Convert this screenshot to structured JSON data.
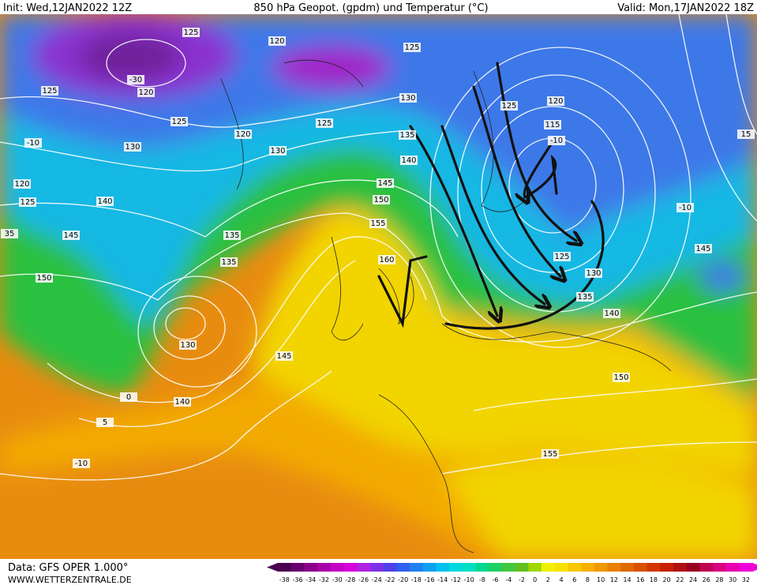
{
  "header": {
    "init": "Init: Wed,12JAN2022 12Z",
    "title": "850 hPa Geopot. (gpdm) und Temperatur (°C)",
    "valid": "Valid: Mon,17JAN2022 18Z"
  },
  "footer": {
    "data": "Data: GFS OPER 1.000°",
    "site": "WWW.WETTERZENTRALE.DE"
  },
  "contour_labels": [
    "125",
    "120",
    "125",
    "125",
    "120",
    "-30",
    "130",
    "120",
    "125",
    "115",
    "125",
    "125",
    "120",
    "130",
    "130",
    "135",
    "140",
    "-10",
    "-10",
    "-10",
    "145",
    "150",
    "155",
    "160",
    "120",
    "125",
    "140",
    "145",
    "135",
    "135",
    "150",
    "125",
    "130",
    "135",
    "140",
    "145",
    "130",
    "145",
    "140",
    "150",
    "155",
    "15",
    "35",
    "-10",
    "5",
    "0"
  ],
  "colorbar": {
    "labels": [
      -38,
      -36,
      -34,
      -32,
      -30,
      -28,
      -26,
      -24,
      -22,
      -20,
      -18,
      -16,
      -14,
      -12,
      -10,
      -8,
      -6,
      -4,
      -2,
      0,
      2,
      4,
      6,
      8,
      10,
      12,
      14,
      16,
      18,
      20,
      22,
      24,
      26,
      28,
      30,
      32
    ],
    "colors": [
      "#4b0050",
      "#6a006e",
      "#8a008a",
      "#a800a8",
      "#c400c4",
      "#d800d8",
      "#b020e0",
      "#8030e8",
      "#5040e8",
      "#3060f0",
      "#2080f0",
      "#10a0f0",
      "#00c0f0",
      "#00d8e0",
      "#00e0c0",
      "#00d890",
      "#20d060",
      "#40c840",
      "#60c020",
      "#a0d800",
      "#f0f000",
      "#f8e000",
      "#f8c800",
      "#f8b000",
      "#f09800",
      "#e88000",
      "#e06800",
      "#d85000",
      "#d03800",
      "#c82000",
      "#b01010",
      "#980020",
      "#c00050",
      "#d80080",
      "#e800b0",
      "#f000d8"
    ]
  }
}
